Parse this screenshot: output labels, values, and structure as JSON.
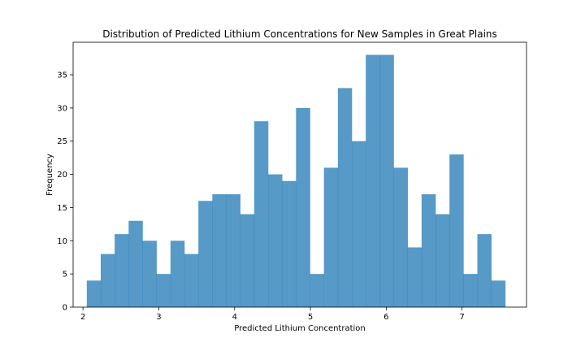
{
  "chart_data": {
    "type": "bar",
    "title": "Distribution of Predicted Lithium Concentrations for New Samples in Great Plains",
    "xlabel": "Predicted Lithium Concentration",
    "ylabel": "Frequency",
    "xlim": [
      1.87,
      7.85
    ],
    "ylim": [
      0,
      39.9
    ],
    "xticks": [
      2,
      3,
      4,
      5,
      6,
      7
    ],
    "yticks": [
      0,
      5,
      10,
      15,
      20,
      25,
      30,
      35
    ],
    "bin_edges": [
      2.05,
      2.234,
      2.418,
      2.602,
      2.786,
      2.97,
      3.154,
      3.338,
      3.522,
      3.706,
      3.89,
      4.074,
      4.258,
      4.442,
      4.626,
      4.81,
      4.994,
      5.178,
      5.362,
      5.546,
      5.73,
      5.914,
      6.098,
      6.282,
      6.466,
      6.65,
      6.834,
      7.018,
      7.202,
      7.386,
      7.57
    ],
    "values": [
      4,
      8,
      11,
      13,
      10,
      5,
      10,
      8,
      16,
      17,
      17,
      14,
      28,
      20,
      19,
      30,
      5,
      21,
      33,
      25,
      38,
      38,
      21,
      9,
      17,
      14,
      23,
      5,
      11,
      4
    ],
    "colors": {
      "bar": "#1f77b4"
    },
    "grid": false,
    "legend": "none"
  }
}
